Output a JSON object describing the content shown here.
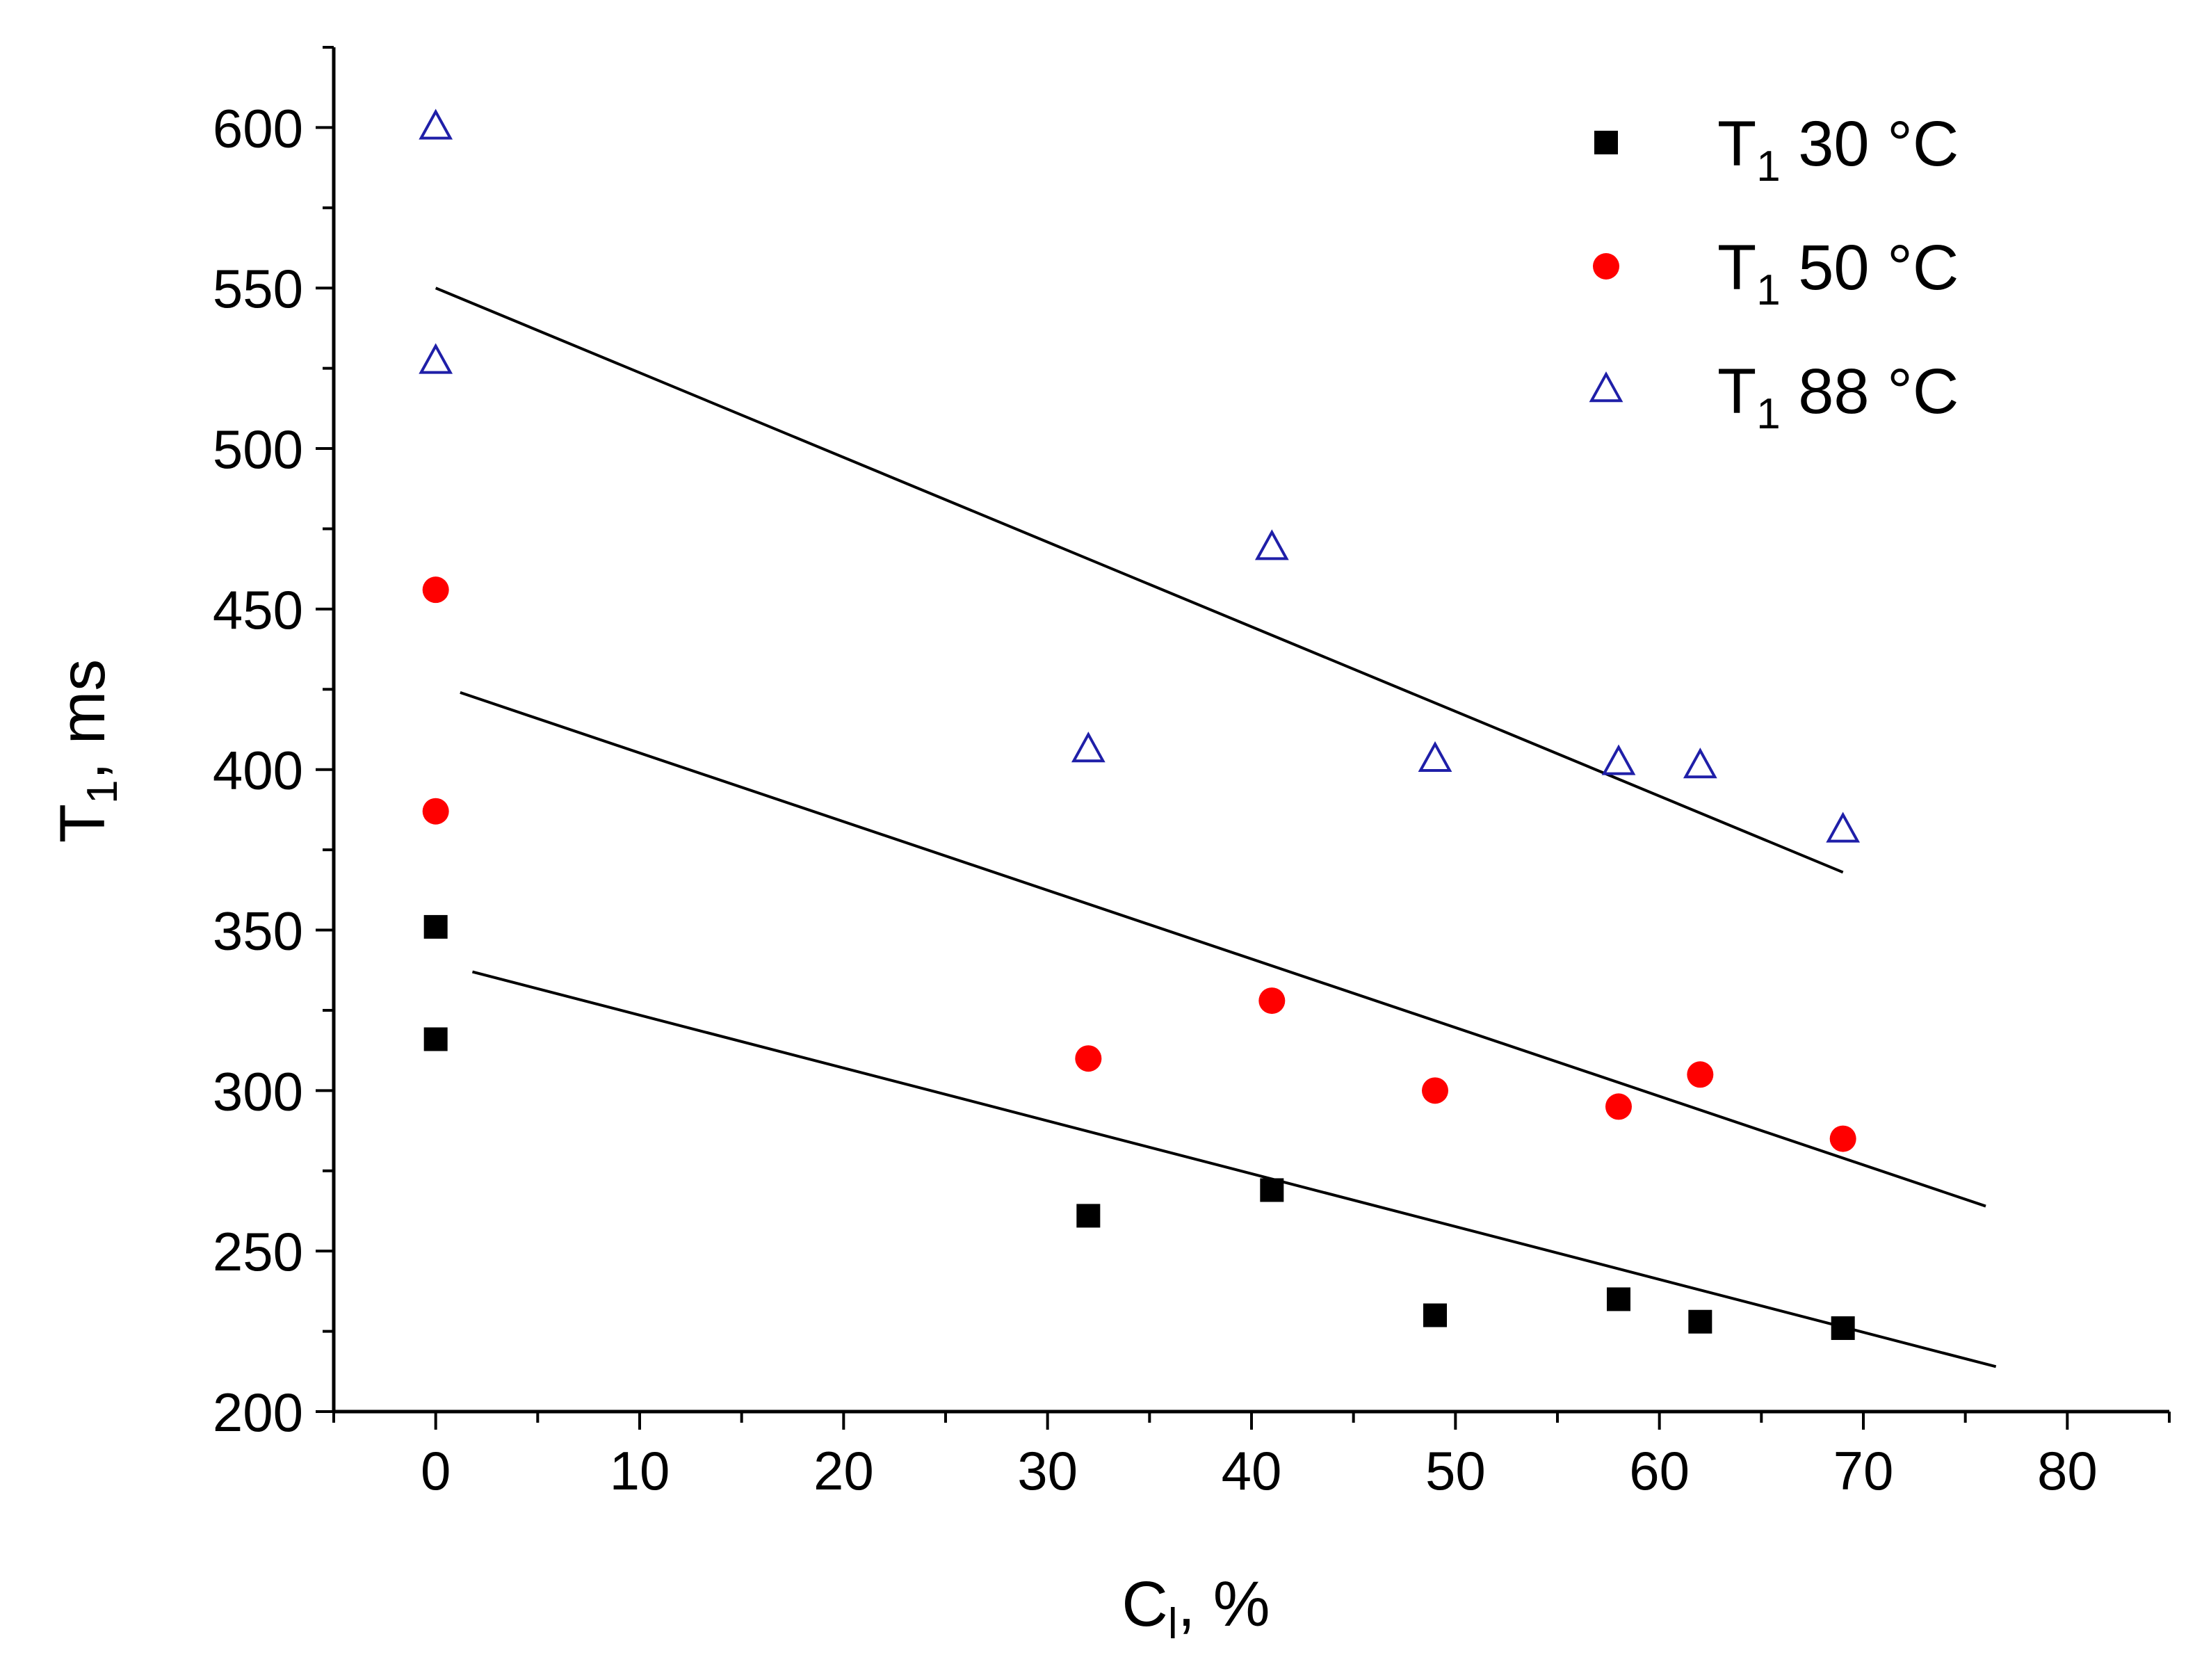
{
  "chart_data": {
    "type": "scatter",
    "title": "",
    "xlabel": {
      "main": "C",
      "sub": "l",
      "rest": ", %"
    },
    "ylabel": {
      "main": "T",
      "sub": "1",
      "rest": ", ms"
    },
    "xlim": [
      -5,
      85
    ],
    "ylim": [
      200,
      625
    ],
    "x_ticks": [
      0,
      10,
      20,
      30,
      40,
      50,
      60,
      70,
      80
    ],
    "y_ticks": [
      200,
      250,
      300,
      350,
      400,
      450,
      500,
      550,
      600
    ],
    "legend_position": "top-right",
    "series": [
      {
        "name": "T1 30 °C",
        "label_main": "T",
        "label_sub": "1",
        "label_rest": " 30 °C",
        "marker": "square",
        "color": "#000000",
        "x": [
          0,
          0,
          32,
          41,
          49,
          58,
          62,
          69
        ],
        "y": [
          351,
          316,
          261,
          269,
          230,
          235,
          228,
          226
        ],
        "fit": {
          "x": [
            1.8,
            76.5
          ],
          "y": [
            337,
            214
          ]
        }
      },
      {
        "name": "T1 50 °C",
        "label_main": "T",
        "label_sub": "1",
        "label_rest": " 50 °C",
        "marker": "circle",
        "color": "#ff0000",
        "x": [
          0,
          0,
          32,
          41,
          49,
          58,
          62,
          69
        ],
        "y": [
          456,
          387,
          310,
          328,
          300,
          295,
          305,
          285
        ],
        "fit": {
          "x": [
            1.2,
            76
          ],
          "y": [
            424,
            264
          ]
        }
      },
      {
        "name": "T1 88 °C",
        "label_main": "T",
        "label_sub": "1",
        "label_rest": " 88 °C",
        "marker": "triangle",
        "color": "#1f1fa8",
        "x": [
          0,
          0,
          32,
          41,
          49,
          58,
          62,
          69
        ],
        "y": [
          600,
          527,
          406,
          469,
          403,
          402,
          401,
          381
        ],
        "fit": {
          "x": [
            0,
            69
          ],
          "y": [
            550,
            368
          ]
        }
      }
    ]
  }
}
